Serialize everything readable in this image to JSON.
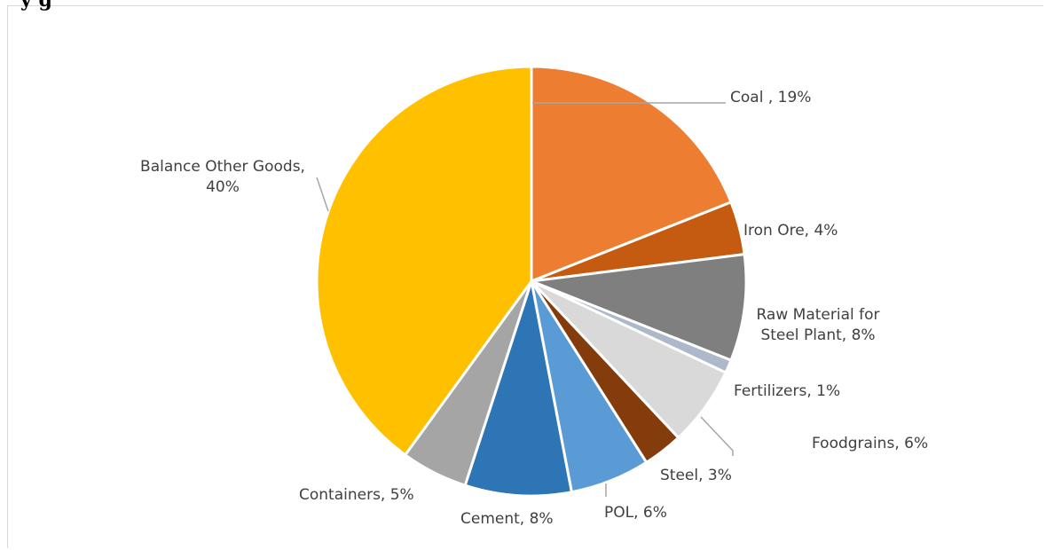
{
  "header": {
    "title_fragment": "y                                      g"
  },
  "chart_data": {
    "type": "pie",
    "title": "",
    "slices": [
      {
        "label": "Coal",
        "value": 19,
        "display": "Coal , 19%",
        "color": "#ED7D31"
      },
      {
        "label": "Iron Ore",
        "value": 4,
        "display": "Iron Ore, 4%",
        "color": "#C55A11"
      },
      {
        "label": "Raw Material for Steel Plant",
        "value": 8,
        "display": "Raw Material for Steel Plant, 8%",
        "display_lines": [
          "Raw Material for",
          "Steel Plant, 8%"
        ],
        "color": "#7F7F7F"
      },
      {
        "label": "Fertilizers",
        "value": 1,
        "display": "Fertilizers, 1%",
        "color": "#ADB9CA"
      },
      {
        "label": "Foodgrains",
        "value": 6,
        "display": "Foodgrains, 6%",
        "color": "#D9D9D9"
      },
      {
        "label": "Steel",
        "value": 3,
        "display": "Steel, 3%",
        "color": "#843C0C"
      },
      {
        "label": "POL",
        "value": 6,
        "display": "POL, 6%",
        "color": "#5B9BD5"
      },
      {
        "label": "Cement",
        "value": 8,
        "display": "Cement, 8%",
        "color": "#2E75B6"
      },
      {
        "label": "Containers",
        "value": 5,
        "display": "Containers, 5%",
        "color": "#A5A5A5"
      },
      {
        "label": "Balance Other Goods",
        "value": 40,
        "display": "Balance Other Goods, 40%",
        "display_lines": [
          "Balance Other Goods,",
          "40%"
        ],
        "color": "#FFC000"
      }
    ],
    "legend": "none",
    "data_labels": "outside with leader lines"
  }
}
